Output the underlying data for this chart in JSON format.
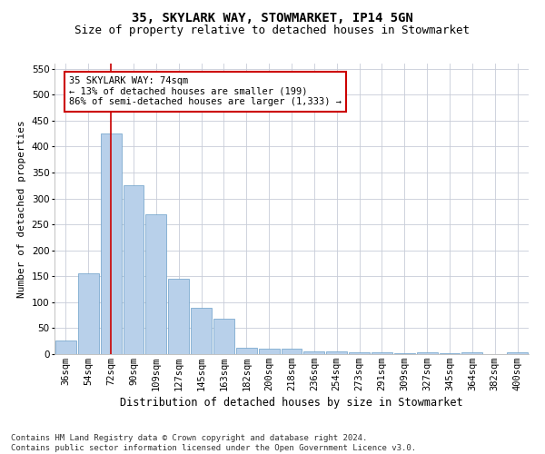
{
  "title_line1": "35, SKYLARK WAY, STOWMARKET, IP14 5GN",
  "title_line2": "Size of property relative to detached houses in Stowmarket",
  "xlabel": "Distribution of detached houses by size in Stowmarket",
  "ylabel": "Number of detached properties",
  "categories": [
    "36sqm",
    "54sqm",
    "72sqm",
    "90sqm",
    "109sqm",
    "127sqm",
    "145sqm",
    "163sqm",
    "182sqm",
    "200sqm",
    "218sqm",
    "236sqm",
    "254sqm",
    "273sqm",
    "291sqm",
    "309sqm",
    "327sqm",
    "345sqm",
    "364sqm",
    "382sqm",
    "400sqm"
  ],
  "values": [
    27,
    155,
    425,
    325,
    270,
    145,
    90,
    68,
    13,
    10,
    10,
    5,
    5,
    4,
    3,
    2,
    4,
    2,
    3,
    0,
    3
  ],
  "bar_color": "#b8d0ea",
  "bar_edge_color": "#6a9fc8",
  "bar_edge_width": 0.5,
  "grid_color": "#c8ccd8",
  "vline_x": 2,
  "vline_color": "#cc0000",
  "annotation_text": "35 SKYLARK WAY: 74sqm\n← 13% of detached houses are smaller (199)\n86% of semi-detached houses are larger (1,333) →",
  "annotation_box_color": "#ffffff",
  "annotation_box_edge_color": "#cc0000",
  "ylim": [
    0,
    560
  ],
  "yticks": [
    0,
    50,
    100,
    150,
    200,
    250,
    300,
    350,
    400,
    450,
    500,
    550
  ],
  "footer_line1": "Contains HM Land Registry data © Crown copyright and database right 2024.",
  "footer_line2": "Contains public sector information licensed under the Open Government Licence v3.0.",
  "background_color": "#ffffff",
  "title_fontsize": 10,
  "subtitle_fontsize": 9,
  "xlabel_fontsize": 8.5,
  "ylabel_fontsize": 8,
  "tick_fontsize": 7.5,
  "annotation_fontsize": 7.5,
  "footer_fontsize": 6.5
}
